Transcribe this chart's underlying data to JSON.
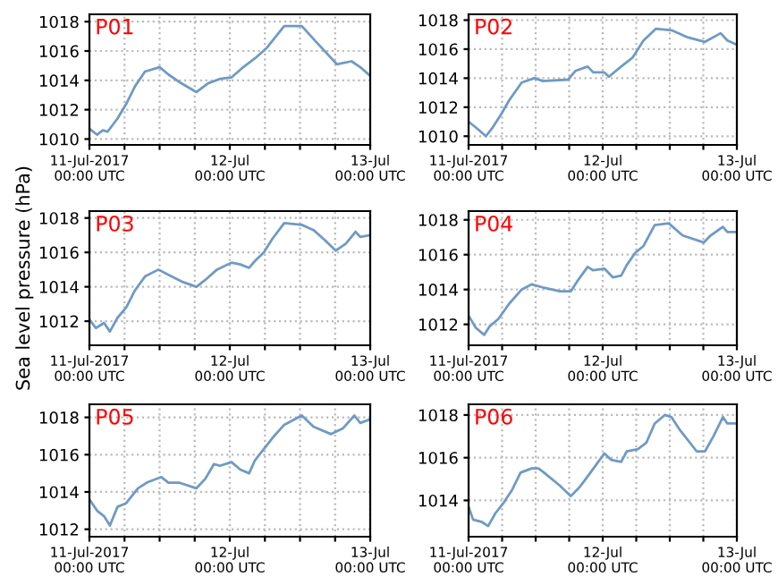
{
  "chart_data": [
    {
      "type": "line",
      "title": "P01",
      "x": [
        "2017-07-11T00:00",
        "2017-07-11T01:18",
        "2017-07-11T02:18",
        "2017-07-11T03:06",
        "2017-07-11T04:48",
        "2017-07-11T06:18",
        "2017-07-11T07:48",
        "2017-07-11T09:30",
        "2017-07-11T12:00",
        "2017-07-11T13:30",
        "2017-07-11T15:18",
        "2017-07-11T18:18",
        "2017-07-11T20:18",
        "2017-07-11T22:18",
        "2017-07-12T00:18",
        "2017-07-12T02:18",
        "2017-07-12T04:18",
        "2017-07-12T06:18",
        "2017-07-12T09:18",
        "2017-07-12T12:18",
        "2017-07-12T14:48",
        "2017-07-12T18:18",
        "2017-07-12T20:48",
        "2017-07-12T22:18",
        "2017-07-13T00:00"
      ],
      "series": [
        {
          "color": "#6f9ac4",
          "values": [
            1010.7,
            1010.3,
            1010.6,
            1010.5,
            1011.4,
            1012.4,
            1013.6,
            1014.6,
            1014.9,
            1014.4,
            1013.9,
            1013.2,
            1013.8,
            1014.1,
            1014.2,
            1014.9,
            1015.5,
            1016.2,
            1017.7,
            1017.7,
            1016.6,
            1015.1,
            1015.3,
            1014.9,
            1014.3
          ]
        }
      ],
      "xlim": [
        "2017-07-11T00:00",
        "2017-07-13T00:00"
      ],
      "xticks": [
        {
          "value": "2017-07-11T00:00",
          "label": "11-Jul-2017\n00:00 UTC"
        },
        {
          "value": "2017-07-11T06:00",
          "label": null
        },
        {
          "value": "2017-07-11T12:00",
          "label": null
        },
        {
          "value": "2017-07-11T18:00",
          "label": null
        },
        {
          "value": "2017-07-12T00:00",
          "label": "12-Jul\n00:00 UTC"
        },
        {
          "value": "2017-07-12T06:00",
          "label": null
        },
        {
          "value": "2017-07-12T12:00",
          "label": null
        },
        {
          "value": "2017-07-12T18:00",
          "label": null
        },
        {
          "value": "2017-07-13T00:00",
          "label": "13-Jul\n00:00 UTC"
        }
      ],
      "ylim": [
        1009.6,
        1018.5
      ],
      "yticks": [
        1010,
        1012,
        1014,
        1016,
        1018
      ],
      "grid": true,
      "line_style": "solid"
    },
    {
      "type": "line",
      "title": "P02",
      "x": [
        "2017-07-11T00:00",
        "2017-07-11T01:18",
        "2017-07-11T03:06",
        "2017-07-11T04:18",
        "2017-07-11T05:48",
        "2017-07-11T07:18",
        "2017-07-11T09:30",
        "2017-07-11T11:48",
        "2017-07-11T13:18",
        "2017-07-11T17:48",
        "2017-07-11T19:06",
        "2017-07-11T21:18",
        "2017-07-11T22:18",
        "2017-07-12T00:18",
        "2017-07-12T01:06",
        "2017-07-12T03:18",
        "2017-07-12T05:18",
        "2017-07-12T07:18",
        "2017-07-12T09:30",
        "2017-07-12T12:18",
        "2017-07-12T15:18",
        "2017-07-12T18:18",
        "2017-07-12T21:06",
        "2017-07-12T22:18",
        "2017-07-13T00:00"
      ],
      "series": [
        {
          "color": "#6f9ac4",
          "values": [
            1011.0,
            1010.6,
            1010.0,
            1010.6,
            1011.5,
            1012.5,
            1013.7,
            1014.0,
            1013.8,
            1013.9,
            1014.5,
            1014.8,
            1014.4,
            1014.4,
            1014.1,
            1014.8,
            1015.4,
            1016.6,
            1017.4,
            1017.3,
            1016.8,
            1016.5,
            1017.1,
            1016.6,
            1016.3
          ]
        }
      ],
      "xlim": [
        "2017-07-11T00:00",
        "2017-07-13T00:00"
      ],
      "xticks": [
        {
          "value": "2017-07-11T00:00",
          "label": "11-Jul-2017\n00:00 UTC"
        },
        {
          "value": "2017-07-11T06:00",
          "label": null
        },
        {
          "value": "2017-07-11T12:00",
          "label": null
        },
        {
          "value": "2017-07-11T18:00",
          "label": null
        },
        {
          "value": "2017-07-12T00:00",
          "label": "12-Jul\n00:00 UTC"
        },
        {
          "value": "2017-07-12T06:00",
          "label": null
        },
        {
          "value": "2017-07-12T12:00",
          "label": null
        },
        {
          "value": "2017-07-12T18:00",
          "label": null
        },
        {
          "value": "2017-07-13T00:00",
          "label": "13-Jul\n00:00 UTC"
        }
      ],
      "ylim": [
        1009.4,
        1018.4
      ],
      "yticks": [
        1010,
        1012,
        1014,
        1016,
        1018
      ],
      "grid": true,
      "line_style": "solid"
    },
    {
      "type": "line",
      "title": "P03",
      "ylabel": "Sea level pressure (hPa)",
      "x": [
        "2017-07-11T00:00",
        "2017-07-11T01:06",
        "2017-07-11T02:30",
        "2017-07-11T03:30",
        "2017-07-11T04:48",
        "2017-07-11T06:18",
        "2017-07-11T07:48",
        "2017-07-11T09:30",
        "2017-07-11T11:48",
        "2017-07-11T13:30",
        "2017-07-11T15:48",
        "2017-07-11T18:18",
        "2017-07-11T19:48",
        "2017-07-11T21:48",
        "2017-07-12T00:18",
        "2017-07-12T01:48",
        "2017-07-12T03:18",
        "2017-07-12T04:18",
        "2017-07-12T05:48",
        "2017-07-12T07:18",
        "2017-07-12T09:18",
        "2017-07-12T12:18",
        "2017-07-12T14:18",
        "2017-07-12T16:18",
        "2017-07-12T18:06",
        "2017-07-12T19:48",
        "2017-07-12T21:30",
        "2017-07-12T22:18",
        "2017-07-13T00:00"
      ],
      "series": [
        {
          "color": "#6f9ac4",
          "values": [
            1012.1,
            1011.6,
            1011.9,
            1011.4,
            1012.2,
            1012.8,
            1013.8,
            1014.6,
            1015.0,
            1014.7,
            1014.3,
            1014.0,
            1014.4,
            1015.0,
            1015.4,
            1015.3,
            1015.1,
            1015.5,
            1016.0,
            1016.8,
            1017.7,
            1017.6,
            1017.3,
            1016.7,
            1016.1,
            1016.5,
            1017.2,
            1016.9,
            1017.0
          ]
        }
      ],
      "xlim": [
        "2017-07-11T00:00",
        "2017-07-13T00:00"
      ],
      "xticks": [
        {
          "value": "2017-07-11T00:00",
          "label": "11-Jul-2017\n00:00 UTC"
        },
        {
          "value": "2017-07-11T06:00",
          "label": null
        },
        {
          "value": "2017-07-11T12:00",
          "label": null
        },
        {
          "value": "2017-07-11T18:00",
          "label": null
        },
        {
          "value": "2017-07-12T00:00",
          "label": "12-Jul\n00:00 UTC"
        },
        {
          "value": "2017-07-12T06:00",
          "label": null
        },
        {
          "value": "2017-07-12T12:00",
          "label": null
        },
        {
          "value": "2017-07-12T18:00",
          "label": null
        },
        {
          "value": "2017-07-13T00:00",
          "label": "13-Jul\n00:00 UTC"
        }
      ],
      "ylim": [
        1010.6,
        1018.4
      ],
      "yticks": [
        1012,
        1014,
        1016,
        1018
      ],
      "grid": true,
      "line_style": "solid"
    },
    {
      "type": "line",
      "title": "P04",
      "x": [
        "2017-07-11T00:00",
        "2017-07-11T01:18",
        "2017-07-11T02:48",
        "2017-07-11T03:48",
        "2017-07-11T05:18",
        "2017-07-11T07:18",
        "2017-07-11T09:30",
        "2017-07-11T11:18",
        "2017-07-11T13:30",
        "2017-07-11T16:18",
        "2017-07-11T18:18",
        "2017-07-11T19:30",
        "2017-07-11T21:18",
        "2017-07-11T22:18",
        "2017-07-12T00:18",
        "2017-07-12T01:48",
        "2017-07-12T03:18",
        "2017-07-12T04:18",
        "2017-07-12T05:48",
        "2017-07-12T07:18",
        "2017-07-12T09:18",
        "2017-07-12T11:48",
        "2017-07-12T14:18",
        "2017-07-12T18:06",
        "2017-07-12T19:18",
        "2017-07-12T21:30",
        "2017-07-12T22:18",
        "2017-07-13T00:00"
      ],
      "series": [
        {
          "color": "#6f9ac4",
          "values": [
            1012.5,
            1011.8,
            1011.4,
            1011.9,
            1012.3,
            1013.2,
            1014.0,
            1014.3,
            1014.1,
            1013.9,
            1013.9,
            1014.5,
            1015.3,
            1015.1,
            1015.2,
            1014.7,
            1014.8,
            1015.4,
            1016.1,
            1016.5,
            1017.7,
            1017.8,
            1017.1,
            1016.7,
            1017.1,
            1017.6,
            1017.3,
            1017.3
          ]
        }
      ],
      "xlim": [
        "2017-07-11T00:00",
        "2017-07-13T00:00"
      ],
      "xticks": [
        {
          "value": "2017-07-11T00:00",
          "label": "11-Jul-2017\n00:00 UTC"
        },
        {
          "value": "2017-07-11T06:00",
          "label": null
        },
        {
          "value": "2017-07-11T12:00",
          "label": null
        },
        {
          "value": "2017-07-11T18:00",
          "label": null
        },
        {
          "value": "2017-07-12T00:00",
          "label": "12-Jul\n00:00 UTC"
        },
        {
          "value": "2017-07-12T06:00",
          "label": null
        },
        {
          "value": "2017-07-12T12:00",
          "label": null
        },
        {
          "value": "2017-07-12T18:00",
          "label": null
        },
        {
          "value": "2017-07-13T00:00",
          "label": "13-Jul\n00:00 UTC"
        }
      ],
      "ylim": [
        1010.8,
        1018.5
      ],
      "yticks": [
        1012,
        1014,
        1016,
        1018
      ],
      "grid": true,
      "line_style": "solid"
    },
    {
      "type": "line",
      "title": "P05",
      "x": [
        "2017-07-11T00:00",
        "2017-07-11T01:18",
        "2017-07-11T02:30",
        "2017-07-11T03:30",
        "2017-07-11T04:48",
        "2017-07-11T06:18",
        "2017-07-11T08:18",
        "2017-07-11T09:48",
        "2017-07-11T12:18",
        "2017-07-11T13:30",
        "2017-07-11T15:18",
        "2017-07-11T18:18",
        "2017-07-11T19:48",
        "2017-07-11T21:18",
        "2017-07-11T22:18",
        "2017-07-12T00:18",
        "2017-07-12T01:48",
        "2017-07-12T03:18",
        "2017-07-12T04:18",
        "2017-07-12T05:48",
        "2017-07-12T07:18",
        "2017-07-12T09:18",
        "2017-07-12T12:18",
        "2017-07-12T14:18",
        "2017-07-12T17:18",
        "2017-07-12T19:18",
        "2017-07-12T21:18",
        "2017-07-12T22:18",
        "2017-07-13T00:00"
      ],
      "series": [
        {
          "color": "#6f9ac4",
          "values": [
            1013.6,
            1013.0,
            1012.7,
            1012.2,
            1013.2,
            1013.4,
            1014.2,
            1014.5,
            1014.8,
            1014.5,
            1014.5,
            1014.2,
            1014.7,
            1015.5,
            1015.4,
            1015.6,
            1015.2,
            1015.0,
            1015.7,
            1016.3,
            1016.9,
            1017.6,
            1018.1,
            1017.5,
            1017.1,
            1017.4,
            1018.1,
            1017.7,
            1017.9
          ]
        }
      ],
      "xlim": [
        "2017-07-11T00:00",
        "2017-07-13T00:00"
      ],
      "xticks": [
        {
          "value": "2017-07-11T00:00",
          "label": "11-Jul-2017\n00:00 UTC"
        },
        {
          "value": "2017-07-11T06:00",
          "label": null
        },
        {
          "value": "2017-07-11T12:00",
          "label": null
        },
        {
          "value": "2017-07-11T18:00",
          "label": null
        },
        {
          "value": "2017-07-12T00:00",
          "label": "12-Jul\n00:00 UTC"
        },
        {
          "value": "2017-07-12T06:00",
          "label": null
        },
        {
          "value": "2017-07-12T12:00",
          "label": null
        },
        {
          "value": "2017-07-12T18:00",
          "label": null
        },
        {
          "value": "2017-07-13T00:00",
          "label": "13-Jul\n00:00 UTC"
        }
      ],
      "ylim": [
        1011.6,
        1018.7
      ],
      "yticks": [
        1012,
        1014,
        1016,
        1018
      ],
      "grid": true,
      "line_style": "solid"
    },
    {
      "type": "line",
      "title": "P06",
      "x": [
        "2017-07-11T00:00",
        "2017-07-11T00:48",
        "2017-07-11T02:18",
        "2017-07-11T03:30",
        "2017-07-11T04:48",
        "2017-07-11T06:18",
        "2017-07-11T07:48",
        "2017-07-11T09:18",
        "2017-07-11T11:18",
        "2017-07-11T12:30",
        "2017-07-11T13:30",
        "2017-07-11T16:18",
        "2017-07-11T18:18",
        "2017-07-11T19:48",
        "2017-07-11T21:48",
        "2017-07-12T00:18",
        "2017-07-12T01:30",
        "2017-07-12T03:18",
        "2017-07-12T04:18",
        "2017-07-12T06:18",
        "2017-07-12T07:48",
        "2017-07-12T09:18",
        "2017-07-12T11:06",
        "2017-07-12T12:18",
        "2017-07-12T13:48",
        "2017-07-12T16:48",
        "2017-07-12T18:18",
        "2017-07-12T19:48",
        "2017-07-12T21:30",
        "2017-07-12T22:18",
        "2017-07-13T00:00"
      ],
      "series": [
        {
          "color": "#6f9ac4",
          "values": [
            1013.7,
            1013.1,
            1013.0,
            1012.8,
            1013.4,
            1013.9,
            1014.5,
            1015.3,
            1015.5,
            1015.5,
            1015.3,
            1014.7,
            1014.2,
            1014.6,
            1015.3,
            1016.2,
            1015.9,
            1015.8,
            1016.3,
            1016.4,
            1016.7,
            1017.6,
            1018.0,
            1017.9,
            1017.3,
            1016.3,
            1016.3,
            1017.0,
            1017.9,
            1017.6,
            1017.6
          ]
        }
      ],
      "xlim": [
        "2017-07-11T00:00",
        "2017-07-13T00:00"
      ],
      "xticks": [
        {
          "value": "2017-07-11T00:00",
          "label": "11-Jul-2017\n00:00 UTC"
        },
        {
          "value": "2017-07-11T06:00",
          "label": null
        },
        {
          "value": "2017-07-11T12:00",
          "label": null
        },
        {
          "value": "2017-07-11T18:00",
          "label": null
        },
        {
          "value": "2017-07-12T00:00",
          "label": "12-Jul\n00:00 UTC"
        },
        {
          "value": "2017-07-12T06:00",
          "label": null
        },
        {
          "value": "2017-07-12T12:00",
          "label": null
        },
        {
          "value": "2017-07-12T18:00",
          "label": null
        },
        {
          "value": "2017-07-13T00:00",
          "label": "13-Jul\n00:00 UTC"
        }
      ],
      "ylim": [
        1012.3,
        1018.5
      ],
      "yticks": [
        1014,
        1016,
        1018
      ],
      "grid": true,
      "line_style": "solid"
    }
  ]
}
